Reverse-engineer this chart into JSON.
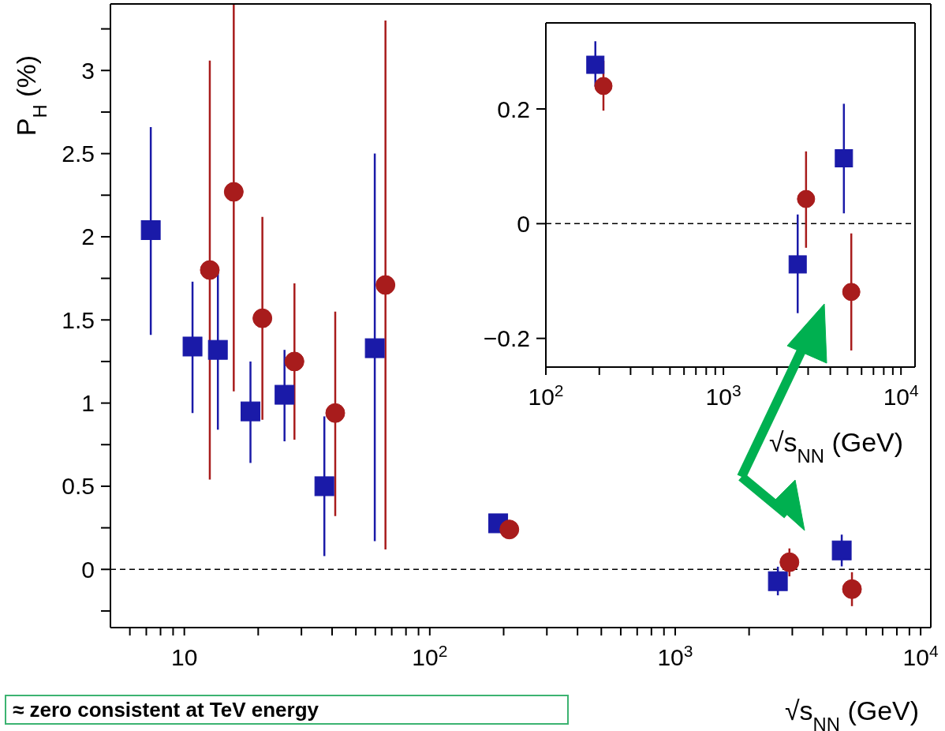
{
  "chart_data": [
    {
      "type": "scatter",
      "xlabel": "√s$_{NN}$ (GeV)",
      "ylabel": "P$_{H}$ (%)",
      "log": "x",
      "xlim": [
        5,
        11000
      ],
      "ylim": [
        -0.35,
        3.4
      ],
      "xticks": [
        {
          "value": 6,
          "label": null
        },
        {
          "value": 7,
          "label": null
        },
        {
          "value": 8,
          "label": null
        },
        {
          "value": 9,
          "label": null
        },
        10,
        {
          "value": 20,
          "label": null
        },
        {
          "value": 30,
          "label": null
        },
        {
          "value": 40,
          "label": null
        },
        {
          "value": 50,
          "label": null
        },
        {
          "value": 60,
          "label": null
        },
        {
          "value": 70,
          "label": null
        },
        {
          "value": 80,
          "label": null
        },
        {
          "value": 90,
          "label": null
        },
        {
          "value": 100,
          "label": "10$^{2}$"
        },
        {
          "value": 200,
          "label": null
        },
        {
          "value": 300,
          "label": null
        },
        {
          "value": 400,
          "label": null
        },
        {
          "value": 500,
          "label": null
        },
        {
          "value": 600,
          "label": null
        },
        {
          "value": 700,
          "label": null
        },
        {
          "value": 800,
          "label": null
        },
        {
          "value": 900,
          "label": null
        },
        {
          "value": 1000,
          "label": "10$^{3}$"
        },
        {
          "value": 2000,
          "label": null
        },
        {
          "value": 3000,
          "label": null
        },
        {
          "value": 4000,
          "label": null
        },
        {
          "value": 5000,
          "label": null
        },
        {
          "value": 6000,
          "label": null
        },
        {
          "value": 7000,
          "label": null
        },
        {
          "value": 8000,
          "label": null
        },
        {
          "value": 9000,
          "label": null
        },
        {
          "value": 10000,
          "label": "10$^{4}$"
        }
      ],
      "yticks": [
        {
          "value": -0.25,
          "label": null
        },
        0,
        {
          "value": 0.25,
          "label": null
        },
        0.5,
        {
          "value": 0.75,
          "label": null
        },
        1,
        {
          "value": 1.25,
          "label": null
        },
        1.5,
        {
          "value": 1.75,
          "label": null
        },
        2,
        {
          "value": 2.25,
          "label": null
        },
        2.5,
        {
          "value": 2.75,
          "label": null
        },
        3,
        {
          "value": 3.25,
          "label": null
        }
      ],
      "ref_lines": [
        {
          "axis": "y",
          "value": 0,
          "line_style": "dashed",
          "color": "#000000"
        }
      ],
      "annotations": [
        "≈ zero consistent at TeV energy"
      ],
      "series": [
        {
          "color": "#1a1aa8",
          "marker": "square",
          "x": [
            7.3,
            10.8,
            13.7,
            18.6,
            25.6,
            37.2,
            59.7,
            190,
            2620,
            4770
          ],
          "values": [
            2.04,
            1.34,
            1.32,
            0.95,
            1.05,
            0.5,
            1.33,
            0.277,
            -0.071,
            0.114
          ],
          "errors": [
            [
              1.41,
              2.66
            ],
            [
              0.94,
              1.73
            ],
            [
              0.84,
              1.8
            ],
            [
              0.64,
              1.25
            ],
            [
              0.77,
              1.32
            ],
            [
              0.08,
              0.92
            ],
            [
              0.17,
              2.5
            ],
            null,
            [
              -0.156,
              0.016
            ],
            [
              0.018,
              0.209
            ]
          ]
        },
        {
          "color": "#a81c1c",
          "marker": "circle",
          "x": [
            12.7,
            15.9,
            20.8,
            28.1,
            41.2,
            66,
            211,
            2920,
            5250
          ],
          "values": [
            1.8,
            2.27,
            1.51,
            1.25,
            0.94,
            1.71,
            0.24,
            0.043,
            -0.119
          ],
          "errors": [
            [
              0.54,
              3.06
            ],
            [
              1.07,
              3.4
            ],
            [
              0.9,
              2.12
            ],
            [
              0.78,
              1.72
            ],
            [
              0.32,
              1.55
            ],
            [
              0.12,
              3.3
            ],
            [
              0.197,
              0.284
            ],
            [
              -0.042,
              0.126
            ],
            [
              -0.221,
              -0.017
            ]
          ]
        }
      ]
    },
    {
      "type": "scatter",
      "xlabel": "√s$_{NN}$ (GeV)",
      "log": "x",
      "xlim": [
        100,
        12000
      ],
      "ylim": [
        -0.25,
        0.35
      ],
      "xticks": [
        {
          "value": 100,
          "label": "10$^{2}$"
        },
        {
          "value": 200,
          "label": null
        },
        {
          "value": 300,
          "label": null
        },
        {
          "value": 400,
          "label": null
        },
        {
          "value": 500,
          "label": null
        },
        {
          "value": 600,
          "label": null
        },
        {
          "value": 700,
          "label": null
        },
        {
          "value": 800,
          "label": null
        },
        {
          "value": 900,
          "label": null
        },
        {
          "value": 1000,
          "label": "10$^{3}$"
        },
        {
          "value": 2000,
          "label": null
        },
        {
          "value": 3000,
          "label": null
        },
        {
          "value": 4000,
          "label": null
        },
        {
          "value": 5000,
          "label": null
        },
        {
          "value": 6000,
          "label": null
        },
        {
          "value": 7000,
          "label": null
        },
        {
          "value": 8000,
          "label": null
        },
        {
          "value": 9000,
          "label": null
        },
        {
          "value": 10000,
          "label": "10$^{4}$"
        }
      ],
      "yticks": [
        {
          "value": -0.2,
          "label": "−0.2"
        },
        0,
        0.2
      ],
      "ref_lines": [
        {
          "axis": "y",
          "value": 0,
          "line_style": "dashed",
          "color": "#000000"
        }
      ],
      "series": [
        {
          "color": "#1a1aa8",
          "marker": "square",
          "x": [
            190,
            2620,
            4770
          ],
          "values": [
            0.277,
            -0.071,
            0.114
          ],
          "errors": [
            [
              0.239,
              0.318
            ],
            [
              -0.156,
              0.016
            ],
            [
              0.018,
              0.209
            ]
          ]
        },
        {
          "color": "#a81c1c",
          "marker": "circle",
          "x": [
            211,
            2920,
            5250
          ],
          "values": [
            0.24,
            0.043,
            -0.119
          ],
          "errors": [
            [
              0.197,
              0.284
            ],
            [
              -0.042,
              0.126
            ],
            [
              -0.221,
              -0.017
            ]
          ]
        }
      ]
    }
  ]
}
